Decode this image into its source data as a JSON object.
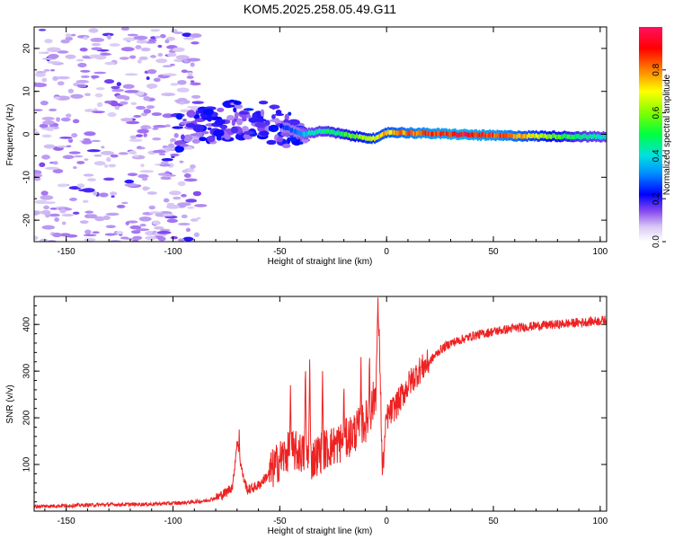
{
  "title": "KOM5.2025.258.05.49.G11",
  "chart_data": [
    {
      "type": "heatmap",
      "xlabel": "Height of straight line (km)",
      "ylabel": "Frequency (Hz)",
      "xlim": [
        -165,
        103
      ],
      "ylim": [
        -25,
        25
      ],
      "xticks": [
        -150,
        -100,
        -50,
        0,
        50,
        100
      ],
      "yticks": [
        -20,
        -10,
        0,
        10,
        20
      ],
      "colorbar": {
        "label": "Normalized spectral amplitude",
        "range": [
          0,
          1
        ],
        "ticks": [
          0.0,
          0.2,
          0.4,
          0.6,
          0.8
        ]
      },
      "trace_center_hz": [
        {
          "x": -95,
          "y": 0.0
        },
        {
          "x": -75,
          "y": 3.0
        },
        {
          "x": -60,
          "y": 3.5
        },
        {
          "x": -50,
          "y": 2.0
        },
        {
          "x": -40,
          "y": 0.0
        },
        {
          "x": -30,
          "y": 0.8
        },
        {
          "x": -15,
          "y": -0.5
        },
        {
          "x": -5,
          "y": -1.0
        },
        {
          "x": 0,
          "y": 0.5
        },
        {
          "x": 20,
          "y": 0.2
        },
        {
          "x": 50,
          "y": -0.3
        },
        {
          "x": 103,
          "y": -0.6
        }
      ],
      "trace_amplitude": [
        {
          "x": -95,
          "v": 0.2
        },
        {
          "x": -75,
          "v": 0.15
        },
        {
          "x": -55,
          "v": 0.2
        },
        {
          "x": -45,
          "v": 0.3
        },
        {
          "x": -35,
          "v": 0.45
        },
        {
          "x": -20,
          "v": 0.55
        },
        {
          "x": -10,
          "v": 0.7
        },
        {
          "x": 0,
          "v": 0.8
        },
        {
          "x": 15,
          "v": 0.9
        },
        {
          "x": 35,
          "v": 1.0
        },
        {
          "x": 55,
          "v": 0.9
        },
        {
          "x": 75,
          "v": 0.65
        },
        {
          "x": 90,
          "v": 0.5
        },
        {
          "x": 103,
          "v": 0.45
        }
      ]
    },
    {
      "type": "line",
      "xlabel": "Height of straight line (km)",
      "ylabel": "SNR (v/v)",
      "xlim": [
        -165,
        103
      ],
      "ylim": [
        0,
        460
      ],
      "xticks": [
        -150,
        -100,
        -50,
        0,
        50,
        100
      ],
      "yticks": [
        100,
        200,
        300,
        400
      ],
      "series": [
        {
          "name": "SNR",
          "color": "#ee2222",
          "x": [
            -165,
            -150,
            -130,
            -110,
            -95,
            -85,
            -80,
            -75,
            -72,
            -70,
            -69,
            -67,
            -65,
            -60,
            -55,
            -50,
            -45,
            -40,
            -35,
            -30,
            -25,
            -20,
            -15,
            -10,
            -7,
            -5,
            -4,
            -3,
            -2,
            0,
            5,
            10,
            15,
            20,
            25,
            30,
            40,
            50,
            60,
            70,
            80,
            90,
            100,
            103
          ],
          "y": [
            10,
            12,
            14,
            15,
            18,
            22,
            28,
            40,
            55,
            150,
            120,
            70,
            45,
            55,
            80,
            110,
            130,
            125,
            110,
            130,
            140,
            150,
            170,
            190,
            220,
            260,
            440,
            300,
            80,
            200,
            230,
            270,
            300,
            320,
            345,
            360,
            375,
            385,
            392,
            397,
            400,
            404,
            408,
            410
          ]
        }
      ],
      "spikes": [
        {
          "x": -69,
          "y": 175
        },
        {
          "x": -45,
          "y": 270
        },
        {
          "x": -38,
          "y": 320
        },
        {
          "x": -36,
          "y": 325
        },
        {
          "x": -30,
          "y": 300
        },
        {
          "x": -20,
          "y": 280
        },
        {
          "x": -12,
          "y": 330
        },
        {
          "x": -8,
          "y": 350
        },
        {
          "x": -4,
          "y": 460
        }
      ]
    }
  ]
}
